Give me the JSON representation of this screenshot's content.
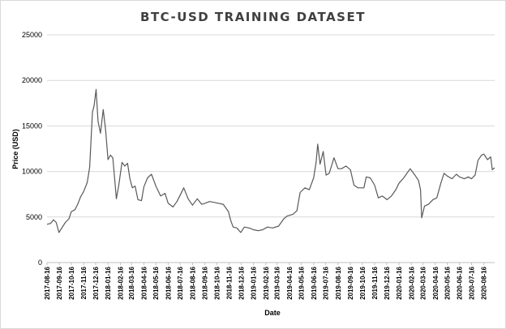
{
  "chart_data": {
    "type": "line",
    "title": "BTC-USD TRAINING DATASET",
    "xlabel": "Date",
    "ylabel": "Price (USD)",
    "ylim": [
      0,
      25000
    ],
    "yticks": [
      0,
      5000,
      10000,
      15000,
      20000,
      25000
    ],
    "grid": "horizontal",
    "legend": "none",
    "line_color": "#595959",
    "x_ticks": [
      "2017-08-16",
      "2017-09-16",
      "2017-10-16",
      "2017-11-16",
      "2017-12-16",
      "2018-01-16",
      "2018-02-16",
      "2018-03-16",
      "2018-04-16",
      "2018-05-16",
      "2018-06-16",
      "2018-07-16",
      "2018-08-16",
      "2018-09-16",
      "2018-10-16",
      "2018-11-16",
      "2018-12-16",
      "2019-01-16",
      "2019-02-16",
      "2019-03-16",
      "2019-04-16",
      "2019-05-16",
      "2019-06-16",
      "2019-07-16",
      "2019-08-16",
      "2019-09-16",
      "2019-10-16",
      "2019-11-16",
      "2019-12-16",
      "2020-01-16",
      "2020-02-16",
      "2020-03-16",
      "2020-04-16",
      "2020-05-16",
      "2020-06-16",
      "2020-07-16",
      "2020-08-16"
    ],
    "series": [
      {
        "x": [
          "2017-08-16",
          "2017-08-25",
          "2017-09-01",
          "2017-09-08",
          "2017-09-15",
          "2017-09-22",
          "2017-10-01",
          "2017-10-10",
          "2017-10-16",
          "2017-10-25",
          "2017-11-01",
          "2017-11-08",
          "2017-11-16",
          "2017-11-25",
          "2017-12-01",
          "2017-12-08",
          "2017-12-12",
          "2017-12-17",
          "2017-12-22",
          "2017-12-28",
          "2018-01-04",
          "2018-01-10",
          "2018-01-16",
          "2018-01-22",
          "2018-01-28",
          "2018-02-02",
          "2018-02-06",
          "2018-02-12",
          "2018-02-20",
          "2018-02-27",
          "2018-03-06",
          "2018-03-12",
          "2018-03-18",
          "2018-03-25",
          "2018-04-01",
          "2018-04-10",
          "2018-04-16",
          "2018-04-25",
          "2018-05-05",
          "2018-05-16",
          "2018-05-28",
          "2018-06-08",
          "2018-06-16",
          "2018-06-28",
          "2018-07-08",
          "2018-07-16",
          "2018-07-25",
          "2018-08-05",
          "2018-08-16",
          "2018-08-28",
          "2018-09-08",
          "2018-09-16",
          "2018-09-28",
          "2018-10-10",
          "2018-10-20",
          "2018-11-01",
          "2018-11-14",
          "2018-11-20",
          "2018-11-26",
          "2018-12-05",
          "2018-12-15",
          "2018-12-24",
          "2019-01-05",
          "2019-01-16",
          "2019-01-28",
          "2019-02-08",
          "2019-02-20",
          "2019-03-05",
          "2019-03-20",
          "2019-04-02",
          "2019-04-10",
          "2019-04-25",
          "2019-05-05",
          "2019-05-13",
          "2019-05-25",
          "2019-06-05",
          "2019-06-16",
          "2019-06-22",
          "2019-06-26",
          "2019-07-02",
          "2019-07-10",
          "2019-07-17",
          "2019-07-25",
          "2019-08-06",
          "2019-08-16",
          "2019-08-25",
          "2019-09-05",
          "2019-09-16",
          "2019-09-25",
          "2019-10-05",
          "2019-10-20",
          "2019-10-26",
          "2019-11-05",
          "2019-11-16",
          "2019-11-25",
          "2019-12-05",
          "2019-12-17",
          "2019-12-28",
          "2020-01-08",
          "2020-01-16",
          "2020-01-28",
          "2020-02-13",
          "2020-02-25",
          "2020-03-05",
          "2020-03-10",
          "2020-03-13",
          "2020-03-20",
          "2020-03-30",
          "2020-04-10",
          "2020-04-20",
          "2020-04-30",
          "2020-05-08",
          "2020-05-16",
          "2020-05-28",
          "2020-06-08",
          "2020-06-16",
          "2020-06-28",
          "2020-07-08",
          "2020-07-16",
          "2020-07-25",
          "2020-08-01",
          "2020-08-10",
          "2020-08-16",
          "2020-08-25",
          "2020-09-02",
          "2020-09-06",
          "2020-09-12"
        ],
        "y": [
          4200,
          4300,
          4700,
          4400,
          3300,
          3800,
          4400,
          4800,
          5600,
          5800,
          6400,
          7200,
          7800,
          8800,
          10500,
          16500,
          17200,
          19000,
          15500,
          14200,
          16800,
          14500,
          11300,
          11800,
          11500,
          9000,
          7000,
          8500,
          11000,
          10600,
          10900,
          9200,
          8200,
          8400,
          6900,
          6800,
          8300,
          9300,
          9700,
          8400,
          7300,
          7600,
          6500,
          6100,
          6700,
          7400,
          8200,
          7000,
          6300,
          7000,
          6400,
          6500,
          6700,
          6600,
          6500,
          6400,
          5600,
          4600,
          3900,
          3800,
          3300,
          3900,
          3800,
          3600,
          3500,
          3600,
          3900,
          3800,
          4000,
          4800,
          5100,
          5300,
          5700,
          7700,
          8200,
          8000,
          9300,
          11000,
          13000,
          10800,
          12200,
          9600,
          9800,
          11500,
          10300,
          10300,
          10600,
          10200,
          8500,
          8200,
          8200,
          9400,
          9300,
          8500,
          7100,
          7300,
          6900,
          7300,
          8000,
          8700,
          9300,
          10300,
          9600,
          9000,
          8000,
          4900,
          6200,
          6400,
          6900,
          7100,
          8700,
          9800,
          9500,
          9200,
          9700,
          9400,
          9200,
          9400,
          9200,
          9600,
          11200,
          11800,
          11900,
          11300,
          11600,
          10200,
          10400
        ]
      }
    ]
  }
}
